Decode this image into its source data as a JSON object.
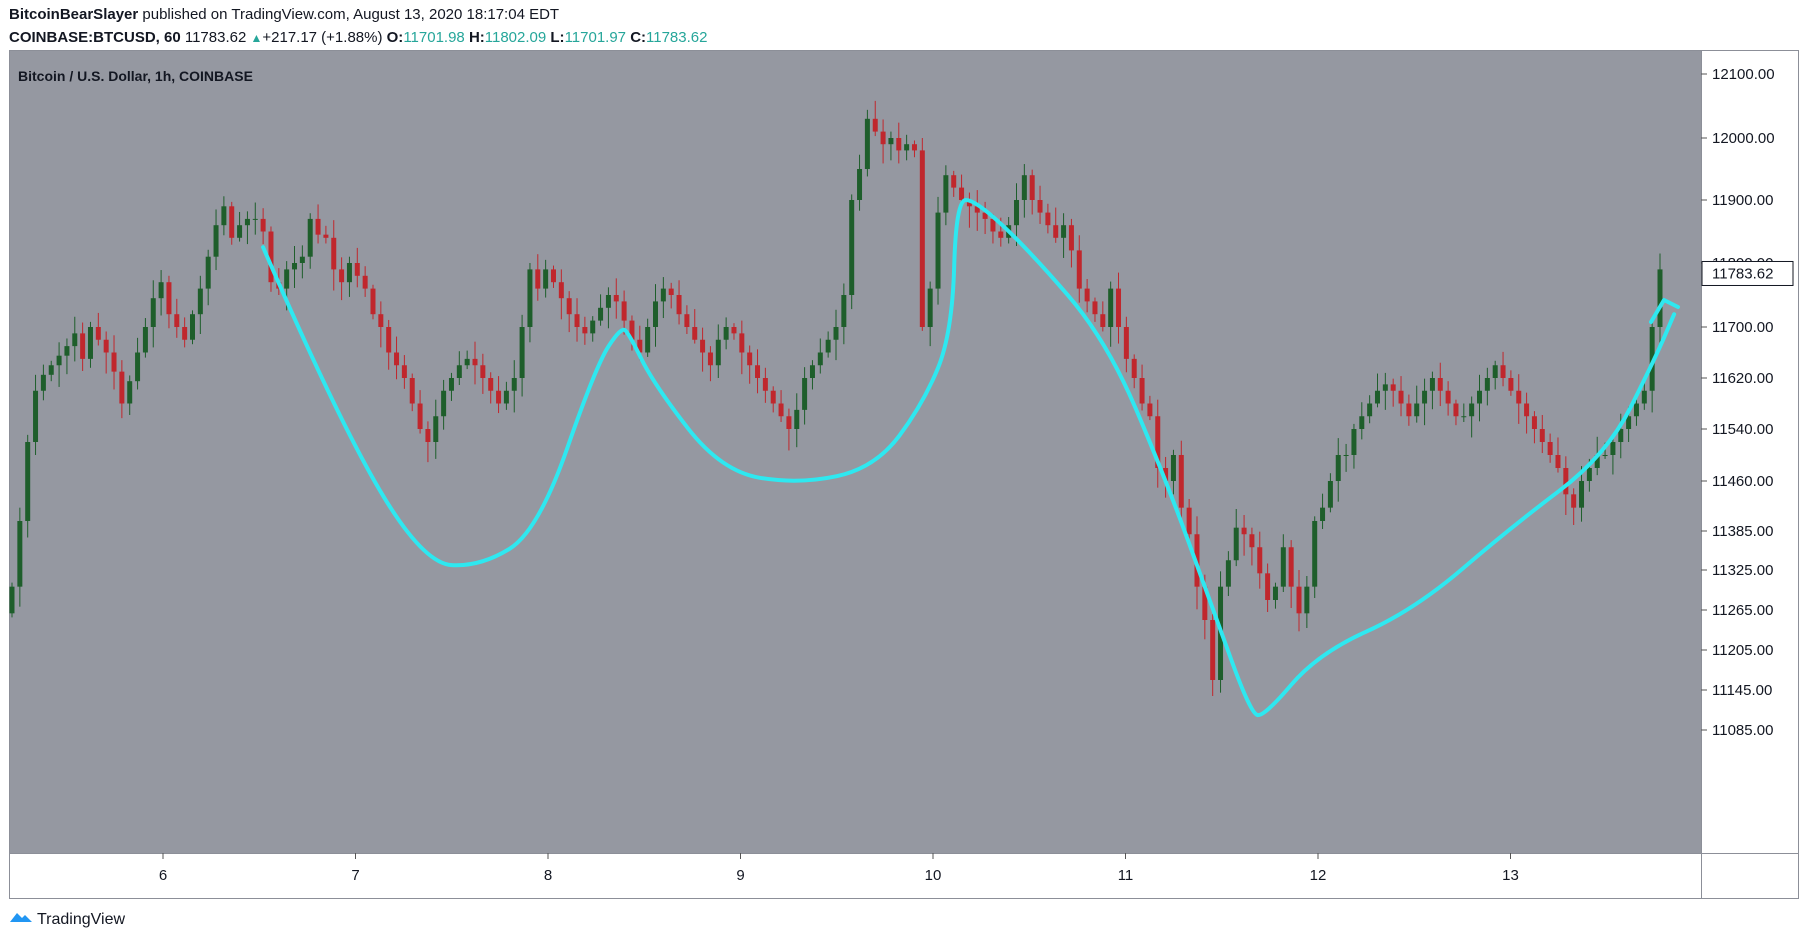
{
  "header": {
    "author": "BitcoinBearSlayer",
    "published": "published on TradingView.com, August 13, 2020 18:17:04 EDT",
    "symbol": "COINBASE:BTCUSD, 60",
    "last": "11783.62",
    "change": "+217.17 (+1.88%)",
    "o_label": "O:",
    "o_value": "11701.98",
    "h_label": "H:",
    "h_value": "11802.09",
    "l_label": "L:",
    "l_value": "11701.97",
    "c_label": "C:",
    "c_value": "11783.62"
  },
  "footer": {
    "brand": "TradingView",
    "icon": "tradingview-logo-icon"
  },
  "colors": {
    "background": "#9598a1",
    "up": "#1e5e2b",
    "down": "#c0272d",
    "drawing": "#2ee8f0",
    "accent": "#26a69a"
  },
  "chart_data": {
    "type": "candlestick",
    "title": "Bitcoin / U.S. Dollar, 1h, COINBASE",
    "xlabel": "",
    "ylabel": "",
    "x_ticks": [
      "6",
      "7",
      "8",
      "9",
      "10",
      "11",
      "12",
      "13"
    ],
    "y_ticks": [
      "12100.00",
      "12000.00",
      "11900.00",
      "11800.00",
      "11700.00",
      "11620.00",
      "11540.00",
      "11460.00",
      "11385.00",
      "11325.00",
      "11265.00",
      "11205.00",
      "11145.00",
      "11085.00"
    ],
    "current_price_label": "11783.62",
    "series": [
      {
        "type": "candles",
        "x_units": "days since Aug 5 00:00",
        "closes": [
          11300,
          11400,
          11520,
          11600,
          11625,
          11640,
          11655,
          11670,
          11690,
          11650,
          11700,
          11680,
          11660,
          11630,
          11580,
          11615,
          11660,
          11700,
          11745,
          11770,
          11720,
          11700,
          11680,
          11720,
          11760,
          11810,
          11860,
          11890,
          11840,
          11860,
          11870,
          11870,
          11850,
          11770,
          11760,
          11790,
          11800,
          11810,
          11870,
          11845,
          11840,
          11790,
          11770,
          11800,
          11780,
          11760,
          11720,
          11700,
          11660,
          11640,
          11620,
          11580,
          11540,
          11520,
          11560,
          11600,
          11620,
          11640,
          11650,
          11640,
          11620,
          11600,
          11580,
          11600,
          11620,
          11700,
          11790,
          11760,
          11790,
          11770,
          11745,
          11720,
          11700,
          11690,
          11710,
          11730,
          11750,
          11740,
          11710,
          11680,
          11660,
          11700,
          11740,
          11760,
          11750,
          11720,
          11700,
          11680,
          11660,
          11640,
          11680,
          11700,
          11690,
          11660,
          11640,
          11620,
          11600,
          11580,
          11560,
          11540,
          11570,
          11620,
          11640,
          11660,
          11680,
          11700,
          11750,
          11900,
          11950,
          12030,
          12010,
          11990,
          12000,
          11980,
          11990,
          11980,
          11700,
          11760,
          11880,
          11940,
          11920,
          11900,
          11890,
          11880,
          11870,
          11850,
          11840,
          11860,
          11900,
          11940,
          11900,
          11880,
          11860,
          11840,
          11860,
          11820,
          11760,
          11740,
          11720,
          11700,
          11760,
          11700,
          11650,
          11620,
          11580,
          11560,
          11480,
          11460,
          11500,
          11420,
          11380,
          11300,
          11250,
          11160,
          11300,
          11340,
          11390,
          11380,
          11360,
          11320,
          11280,
          11300,
          11360,
          11300,
          11260,
          11300,
          11400,
          11420,
          11460,
          11500,
          11500,
          11540,
          11560,
          11580,
          11600,
          11610,
          11600,
          11580,
          11560,
          11580,
          11600,
          11620,
          11600,
          11580,
          11560,
          11560,
          11580,
          11600,
          11620,
          11640,
          11620,
          11600,
          11580,
          11560,
          11540,
          11520,
          11500,
          11480,
          11440,
          11420,
          11460,
          11480,
          11500,
          11500,
          11520,
          11540,
          11560,
          11580,
          11600,
          11700,
          11790
        ]
      }
    ],
    "annotation": {
      "type": "freehand-path",
      "color": "#2ee8f0",
      "points_xy": [
        [
          6.52,
          11825
        ],
        [
          6.9,
          11560
        ],
        [
          7.35,
          11335
        ],
        [
          7.65,
          11330
        ],
        [
          7.95,
          11385
        ],
        [
          8.25,
          11640
        ],
        [
          8.38,
          11700
        ],
        [
          8.42,
          11690
        ],
        [
          8.55,
          11610
        ],
        [
          8.9,
          11475
        ],
        [
          9.3,
          11455
        ],
        [
          9.7,
          11480
        ],
        [
          9.95,
          11580
        ],
        [
          10.1,
          11690
        ],
        [
          10.12,
          11900
        ],
        [
          10.22,
          11900
        ],
        [
          10.5,
          11820
        ],
        [
          10.9,
          11680
        ],
        [
          11.2,
          11470
        ],
        [
          11.45,
          11270
        ],
        [
          11.65,
          11110
        ],
        [
          11.72,
          11105
        ],
        [
          12.0,
          11200
        ],
        [
          12.5,
          11265
        ],
        [
          13.0,
          11390
        ],
        [
          13.5,
          11500
        ],
        [
          13.75,
          11650
        ],
        [
          13.85,
          11720
        ]
      ]
    }
  }
}
